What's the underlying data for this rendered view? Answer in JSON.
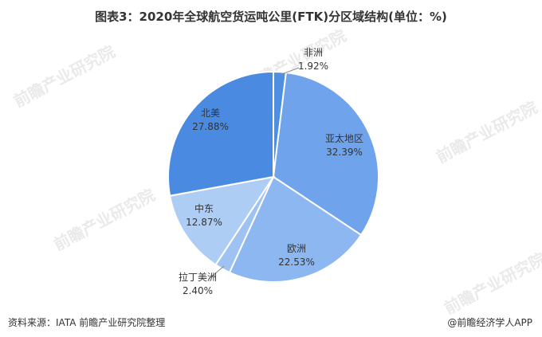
{
  "title": "图表3：2020年全球航空货运吨公里(FTK)分区域结构(单位：%)",
  "footer": {
    "source": "资料来源：IATA 前瞻产业研究院整理",
    "brand": "@前瞻经济学人APP"
  },
  "watermark": "前瞻产业研究院",
  "chart_data": {
    "type": "pie",
    "title": "图表3：2020年全球航空货运吨公里(FTK)分区域结构(单位：%)",
    "unit": "%",
    "slices": [
      {
        "label": "非洲",
        "value": 1.92,
        "display": "1.92%",
        "color": "#4F8FE0"
      },
      {
        "label": "亚太地区",
        "value": 32.39,
        "display": "32.39%",
        "color": "#6FA3EB"
      },
      {
        "label": "欧洲",
        "value": 22.53,
        "display": "22.53%",
        "color": "#8CB7F0"
      },
      {
        "label": "拉丁美洲",
        "value": 2.4,
        "display": "2.40%",
        "color": "#9EC3F3"
      },
      {
        "label": "中东",
        "value": 12.87,
        "display": "12.87%",
        "color": "#AECDF5"
      },
      {
        "label": "北美",
        "value": 27.88,
        "display": "27.88%",
        "color": "#4A8AE0"
      }
    ]
  }
}
